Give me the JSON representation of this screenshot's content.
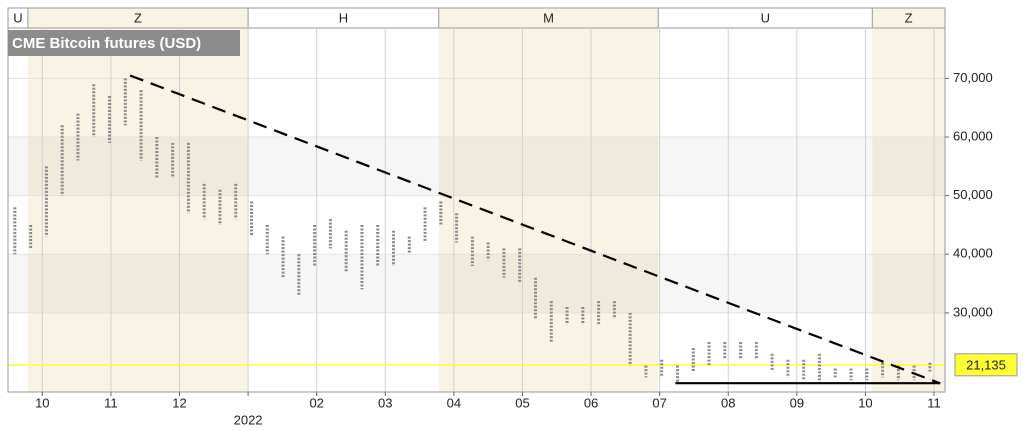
{
  "chart_data": {
    "type": "ohlc",
    "title": "CME Bitcoin futures (USD)",
    "xlim": [
      9.5,
      23.16
    ],
    "ylim": [
      16500,
      78600
    ],
    "xticks": [
      10,
      11,
      12,
      {
        "value": 13,
        "label": "2022"
      },
      {
        "value": 14,
        "label": "02"
      },
      {
        "value": 15,
        "label": "03"
      },
      {
        "value": 16,
        "label": "04"
      },
      {
        "value": 17,
        "label": "05"
      },
      {
        "value": 18,
        "label": "06"
      },
      {
        "value": 19,
        "label": "07"
      },
      {
        "value": 20,
        "label": "08"
      },
      {
        "value": 21,
        "label": "09"
      },
      {
        "value": 22,
        "label": "10"
      },
      {
        "value": 23,
        "label": "11"
      }
    ],
    "yticks": [
      {
        "value": 30000,
        "label": "30,000"
      },
      {
        "value": 40000,
        "label": "40,000"
      },
      {
        "value": 50000,
        "label": "50,000"
      },
      {
        "value": 60000,
        "label": "60,000"
      },
      {
        "value": 70000,
        "label": "70,000"
      }
    ],
    "grid": true,
    "contracts": [
      {
        "label": "U",
        "start": 9.5,
        "end": 9.79,
        "shaded": false
      },
      {
        "label": "Z",
        "start": 9.79,
        "end": 13,
        "shaded": true
      },
      {
        "label": "H",
        "start": 13,
        "end": 15.78,
        "shaded": false
      },
      {
        "label": "M",
        "start": 15.78,
        "end": 18.98,
        "shaded": true
      },
      {
        "label": "U",
        "start": 18.98,
        "end": 22.1,
        "shaded": false
      },
      {
        "label": "Z",
        "start": 22.1,
        "end": 23.16,
        "shaded": true
      }
    ],
    "bars": {
      "color": "#8a8a8a",
      "x": [
        9.6,
        9.83,
        10.06,
        10.29,
        10.52,
        10.75,
        10.98,
        11.21,
        11.44,
        11.67,
        11.9,
        12.13,
        12.36,
        12.59,
        12.82,
        13.05,
        13.28,
        13.51,
        13.74,
        13.97,
        14.2,
        14.43,
        14.66,
        14.89,
        15.12,
        15.35,
        15.58,
        15.81,
        16.04,
        16.27,
        16.5,
        16.73,
        16.96,
        17.19,
        17.42,
        17.65,
        17.88,
        18.11,
        18.34,
        18.57,
        18.8,
        19.03,
        19.26,
        19.49,
        19.72,
        19.95,
        20.18,
        20.41,
        20.64,
        20.87,
        21.1,
        21.33,
        21.56,
        21.79,
        22.02,
        22.25,
        22.48,
        22.71,
        22.94
      ],
      "high": [
        48000,
        45000,
        55000,
        62000,
        64000,
        69000,
        67000,
        70000,
        68000,
        60000,
        59000,
        59000,
        52000,
        51000,
        52000,
        49000,
        45000,
        43000,
        40000,
        45000,
        46000,
        44000,
        45000,
        45000,
        44000,
        43000,
        48000,
        49000,
        47000,
        43000,
        42000,
        41000,
        41000,
        36000,
        32000,
        31000,
        31000,
        32000,
        32000,
        30000,
        21000,
        22000,
        21000,
        24000,
        25000,
        25000,
        25000,
        25000,
        23000,
        22000,
        22000,
        23000,
        20500,
        20500,
        20500,
        21500,
        21000,
        21000,
        21500
      ],
      "low": [
        40000,
        41000,
        43000,
        50000,
        56000,
        60000,
        59000,
        62000,
        56000,
        53000,
        53000,
        47000,
        46000,
        45000,
        46000,
        43000,
        40000,
        36000,
        33000,
        38000,
        41000,
        37000,
        34000,
        38000,
        38000,
        40000,
        42000,
        45000,
        42000,
        38000,
        39000,
        36000,
        35000,
        29000,
        25000,
        28000,
        28000,
        28000,
        29000,
        21000,
        19000,
        19000,
        18000,
        20000,
        21000,
        22000,
        22000,
        22000,
        20000,
        19000,
        18500,
        18500,
        19000,
        18500,
        18500,
        19000,
        18500,
        18500,
        20000
      ]
    },
    "last_price": {
      "value": 21135,
      "label": "21,135",
      "color": "#ffff33"
    },
    "lines": [
      {
        "style": "dashed",
        "color": "#000000",
        "x": [
          11.28,
          23.09
        ],
        "y": [
          70500,
          17970
        ]
      },
      {
        "style": "solid",
        "color": "#000000",
        "x": [
          19.23,
          23.09
        ],
        "y": [
          18000,
          18000
        ]
      }
    ]
  }
}
